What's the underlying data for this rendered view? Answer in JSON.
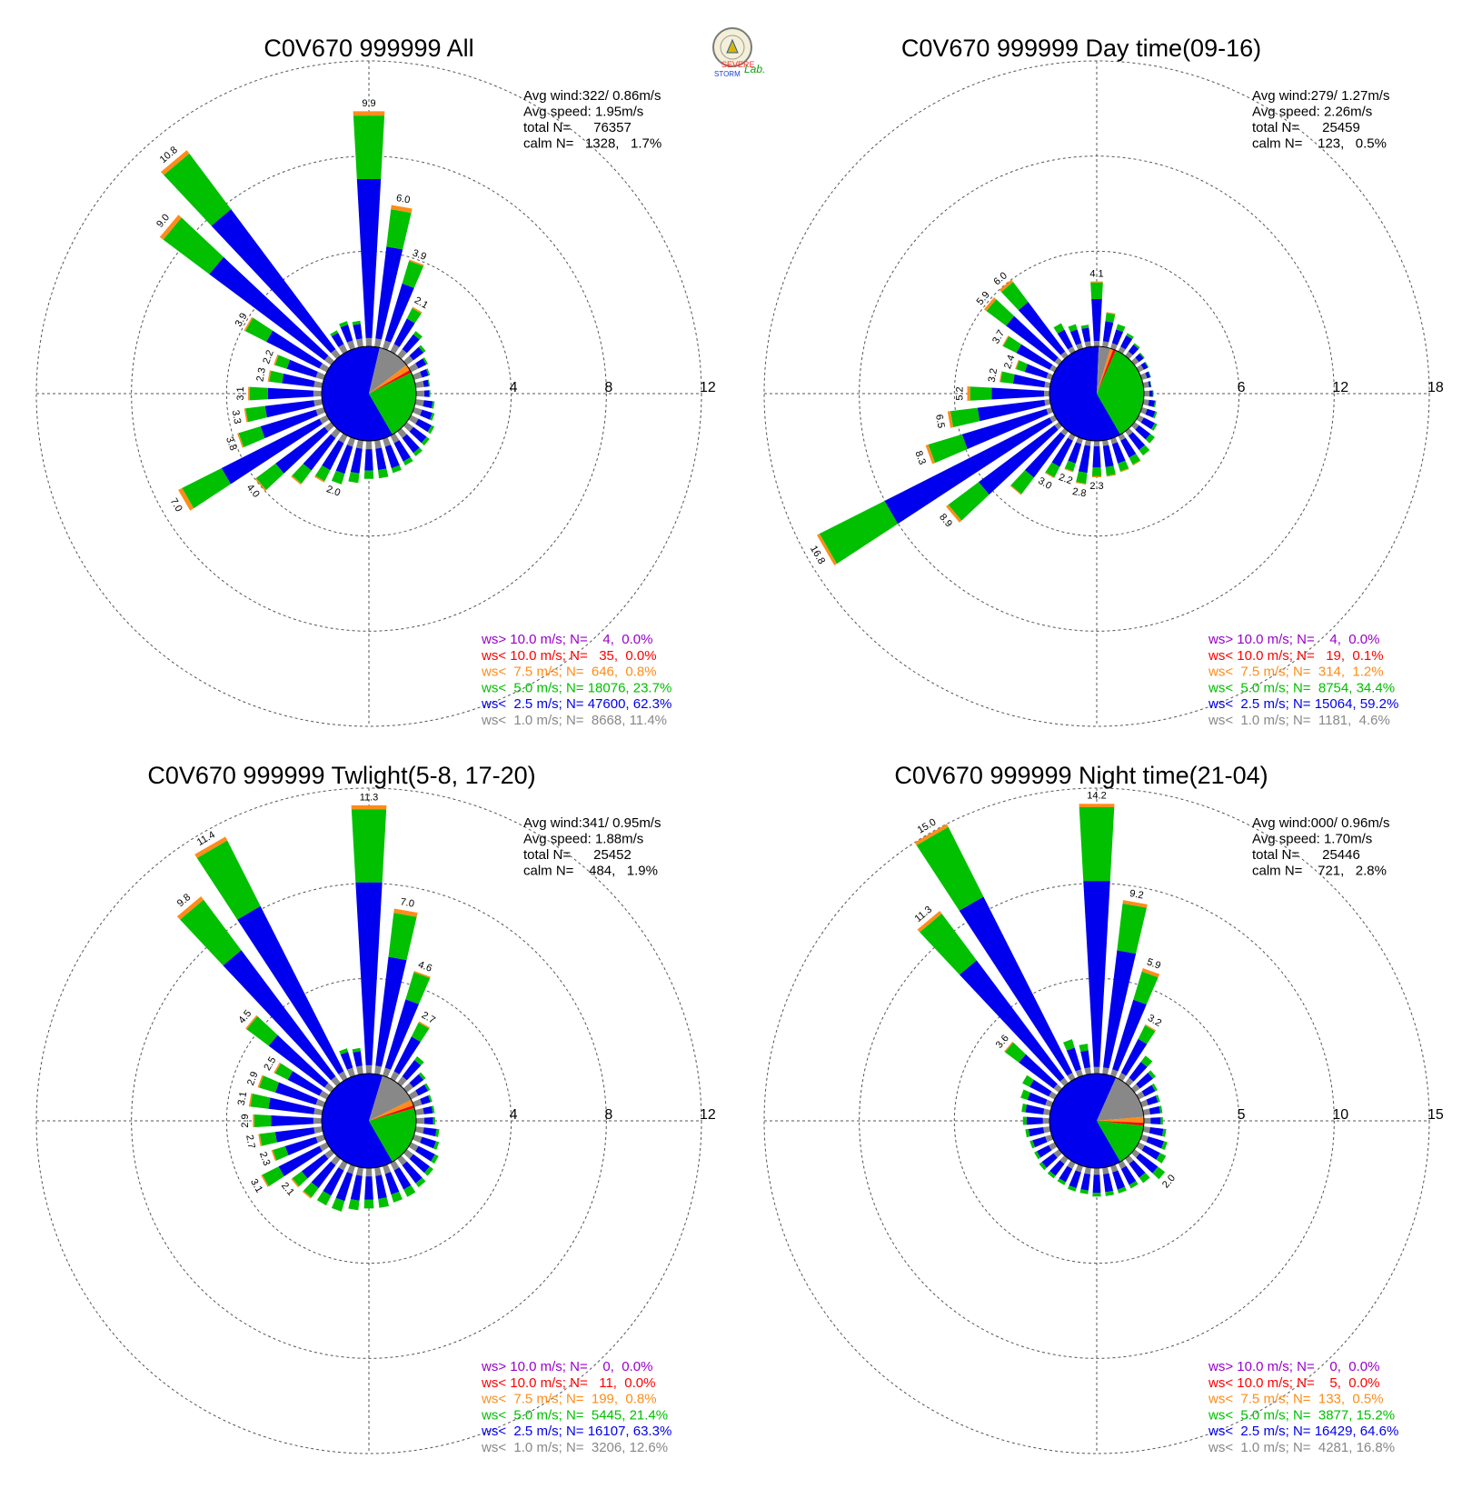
{
  "logo": {
    "line1": "SEVERE",
    "line2": "STORM",
    "line3": "Lab."
  },
  "colors": {
    "gt10": "#9900cc",
    "lt10": "#ff0000",
    "lt75": "#ff8c1a",
    "lt5": "#00c000",
    "lt25": "#0000ee",
    "lt1": "#888888",
    "calm_outline": "#000000"
  },
  "chart_data": [
    {
      "type": "rose",
      "title": "C0V670 999999 All",
      "stats": [
        "Avg wind:322/ 0.86m/s",
        "Avg speed: 1.95m/s",
        "total N=      76357",
        "calm N=   1328,   1.7%"
      ],
      "legend": [
        "ws> 10.0 m/s; N=    4,  0.0%",
        "ws< 10.0 m/s; N=   35,  0.0%",
        "ws<  7.5 m/s; N=  646,  0.8%",
        "ws<  5.0 m/s; N= 18076, 23.7%",
        "ws<  2.5 m/s; N= 47600, 62.3%",
        "ws<  1.0 m/s; N=  8668, 11.4%"
      ],
      "ring_values": [
        4,
        8,
        12
      ],
      "ring_labels": [
        "4",
        "8",
        "12"
      ],
      "rmax": 12,
      "pie_fractions": [
        0.62,
        0.24,
        0.11,
        0.02,
        0.01
      ],
      "directions": [
        0,
        10,
        20,
        30,
        40,
        50,
        60,
        70,
        80,
        90,
        100,
        110,
        120,
        130,
        140,
        150,
        160,
        170,
        180,
        190,
        200,
        210,
        220,
        230,
        240,
        250,
        260,
        270,
        280,
        290,
        300,
        310,
        320,
        330,
        340,
        350
      ],
      "totals": [
        9.9,
        6.0,
        3.9,
        2.1,
        1.3,
        1.0,
        0.8,
        0.7,
        0.6,
        0.6,
        0.8,
        0.9,
        1.1,
        1.2,
        1.3,
        1.4,
        1.5,
        1.6,
        1.6,
        1.8,
        2.0,
        2.2,
        2.8,
        4.0,
        7.0,
        3.8,
        3.3,
        3.1,
        2.3,
        2.2,
        3.9,
        9.0,
        10.8,
        1.0,
        1.2,
        1.1
      ],
      "bar_labels": [
        "9.9",
        "6.0",
        "3.9",
        "2.1",
        "",
        "",
        "",
        "",
        "",
        "",
        "",
        "",
        "",
        "",
        "",
        "",
        "",
        "",
        "",
        "",
        "2.0",
        "",
        "",
        "4.0",
        "7.0",
        "3.8",
        "3.3",
        "3.1",
        "2.3",
        "2.2",
        "3.9",
        "9.0",
        "10.8",
        "",
        "",
        ""
      ]
    },
    {
      "type": "rose",
      "title": "C0V670 999999 Day time(09-16)",
      "stats": [
        "Avg wind:279/ 1.27m/s",
        "Avg speed: 2.26m/s",
        "total N=      25459",
        "calm N=    123,   0.5%"
      ],
      "legend": [
        "ws> 10.0 m/s; N=    4,  0.0%",
        "ws< 10.0 m/s; N=   19,  0.1%",
        "ws<  7.5 m/s; N=  314,  1.2%",
        "ws<  5.0 m/s; N=  8754, 34.4%",
        "ws<  2.5 m/s; N= 15064, 59.2%",
        "ws<  1.0 m/s; N=  1181,  4.6%"
      ],
      "ring_values": [
        6,
        12,
        18
      ],
      "ring_labels": [
        "6",
        "12",
        "18"
      ],
      "rmax": 18,
      "pie_fractions": [
        0.59,
        0.35,
        0.04,
        0.01,
        0.01
      ],
      "directions": [
        0,
        10,
        20,
        30,
        40,
        50,
        60,
        70,
        80,
        90,
        100,
        110,
        120,
        130,
        140,
        150,
        160,
        170,
        180,
        190,
        200,
        210,
        220,
        230,
        240,
        250,
        260,
        270,
        280,
        290,
        300,
        310,
        320,
        330,
        340,
        350
      ],
      "totals": [
        4.1,
        2.2,
        1.6,
        1.3,
        1.0,
        0.8,
        0.7,
        0.6,
        0.5,
        0.6,
        0.8,
        1.0,
        1.3,
        1.6,
        1.9,
        2.1,
        2.2,
        2.3,
        2.3,
        2.8,
        2.2,
        3.0,
        5.0,
        8.9,
        16.8,
        8.3,
        6.5,
        5.2,
        3.2,
        2.4,
        3.7,
        5.9,
        6.0,
        2.0,
        1.6,
        1.4
      ],
      "bar_labels": [
        "4.1",
        "",
        "",
        "",
        "",
        "",
        "",
        "",
        "",
        "",
        "",
        "",
        "",
        "",
        "",
        "",
        "",
        "",
        "2.3",
        "2.8",
        "2.2",
        "3.0",
        "",
        "8.9",
        "16.8",
        "8.3",
        "6.5",
        "5.2",
        "3.2",
        "2.4",
        "3.7",
        "5.9",
        "6.0",
        "",
        "",
        ""
      ]
    },
    {
      "type": "rose",
      "title": "C0V670 999999 Twlight(5-8, 17-20)",
      "stats": [
        "Avg wind:341/ 0.95m/s",
        "Avg speed: 1.88m/s",
        "total N=      25452",
        "calm N=    484,   1.9%"
      ],
      "legend": [
        "ws> 10.0 m/s; N=    0,  0.0%",
        "ws< 10.0 m/s; N=   11,  0.0%",
        "ws<  7.5 m/s; N=  199,  0.8%",
        "ws<  5.0 m/s; N=  5445, 21.4%",
        "ws<  2.5 m/s; N= 16107, 63.3%",
        "ws<  1.0 m/s; N=  3206, 12.6%"
      ],
      "ring_values": [
        4,
        8,
        12
      ],
      "ring_labels": [
        "4",
        "8",
        "12"
      ],
      "rmax": 12,
      "pie_fractions": [
        0.63,
        0.21,
        0.13,
        0.02,
        0.01
      ],
      "directions": [
        0,
        10,
        20,
        30,
        40,
        50,
        60,
        70,
        80,
        90,
        100,
        110,
        120,
        130,
        140,
        150,
        160,
        170,
        180,
        190,
        200,
        210,
        220,
        230,
        240,
        250,
        260,
        270,
        280,
        290,
        300,
        310,
        320,
        330,
        340,
        350
      ],
      "totals": [
        11.3,
        7.0,
        4.6,
        2.7,
        1.4,
        1.0,
        0.9,
        0.8,
        0.8,
        0.8,
        1.0,
        1.1,
        1.3,
        1.4,
        1.5,
        1.6,
        1.6,
        1.7,
        1.7,
        1.8,
        2.0,
        2.0,
        2.1,
        2.1,
        3.1,
        2.3,
        2.7,
        2.9,
        3.1,
        2.9,
        2.5,
        4.5,
        9.8,
        11.4,
        1.2,
        1.1
      ],
      "bar_labels": [
        "11.3",
        "7.0",
        "4.6",
        "2.7",
        "",
        "",
        "",
        "",
        "",
        "",
        "",
        "",
        "",
        "",
        "",
        "",
        "",
        "",
        "",
        "",
        "",
        "",
        "",
        "2.1",
        "3.1",
        "2.3",
        "2.7",
        "2.9",
        "3.1",
        "2.9",
        "2.5",
        "4.5",
        "9.8",
        "11.4",
        "",
        ""
      ]
    },
    {
      "type": "rose",
      "title": "C0V670 999999 Night time(21-04)",
      "stats": [
        "Avg wind:000/ 0.96m/s",
        "Avg speed: 1.70m/s",
        "total N=      25446",
        "calm N=    721,   2.8%"
      ],
      "legend": [
        "ws> 10.0 m/s; N=    0,  0.0%",
        "ws< 10.0 m/s; N=    5,  0.0%",
        "ws<  7.5 m/s; N=  133,  0.5%",
        "ws<  5.0 m/s; N=  3877, 15.2%",
        "ws<  2.5 m/s; N= 16429, 64.6%",
        "ws<  1.0 m/s; N=  4281, 16.8%"
      ],
      "ring_values": [
        5,
        10,
        15
      ],
      "ring_labels": [
        "5",
        "10",
        "15"
      ],
      "rmax": 15,
      "pie_fractions": [
        0.65,
        0.15,
        0.17,
        0.02,
        0.01
      ],
      "directions": [
        0,
        10,
        20,
        30,
        40,
        50,
        60,
        70,
        80,
        90,
        100,
        110,
        120,
        130,
        140,
        150,
        160,
        170,
        180,
        190,
        200,
        210,
        220,
        230,
        240,
        250,
        260,
        270,
        280,
        290,
        300,
        310,
        320,
        330,
        340,
        350
      ],
      "totals": [
        14.2,
        9.2,
        5.9,
        3.2,
        1.8,
        1.4,
        1.1,
        1.0,
        1.0,
        1.0,
        1.2,
        1.4,
        1.6,
        2.0,
        1.6,
        1.5,
        1.5,
        1.5,
        1.5,
        1.4,
        1.4,
        1.3,
        1.3,
        1.3,
        1.2,
        1.2,
        1.3,
        1.4,
        1.5,
        1.7,
        1.9,
        3.6,
        11.3,
        15.0,
        2.0,
        1.6
      ],
      "bar_labels": [
        "14.2",
        "9.2",
        "5.9",
        "3.2",
        "",
        "",
        "",
        "",
        "",
        "",
        "",
        "",
        "",
        "2.0",
        "",
        "",
        "",
        "",
        "",
        "",
        "",
        "",
        "",
        "",
        "",
        "",
        "",
        "",
        "",
        "",
        "",
        "3.6",
        "11.3",
        "15.0",
        "",
        ""
      ]
    }
  ]
}
